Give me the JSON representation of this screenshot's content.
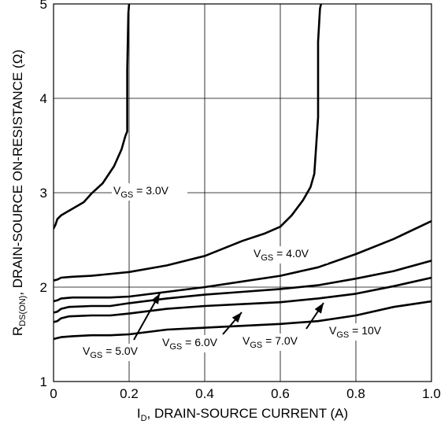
{
  "chart_data": {
    "type": "line",
    "title": "",
    "x_axis": {
      "label_main": "I",
      "label_sub": "D",
      "label_rest": ", DRAIN-SOURCE CURRENT (A)",
      "lim": [
        0,
        1.0
      ],
      "ticks": [
        "0",
        "0.2",
        "0.4",
        "0.6",
        "0.8",
        "1.0"
      ]
    },
    "y_axis": {
      "label_main": "R",
      "label_sub": "DS(ON)",
      "label_rest": ", DRAIN-SOURCE ON-RESISTANCE (Ω)",
      "lim": [
        1,
        5
      ],
      "ticks": [
        "1",
        "2",
        "3",
        "4",
        "5"
      ]
    },
    "grid": true,
    "series": [
      {
        "name_main": "V",
        "name_sub": "GS",
        "name_rest": " = 3.0V",
        "x": [
          0.0,
          0.005,
          0.01,
          0.02,
          0.05,
          0.08,
          0.1,
          0.13,
          0.16,
          0.18,
          0.19,
          0.195,
          0.195,
          0.198,
          0.2,
          0.2
        ],
        "y": [
          2.62,
          2.66,
          2.72,
          2.76,
          2.83,
          2.9,
          2.99,
          3.1,
          3.28,
          3.46,
          3.6,
          3.65,
          4.3,
          4.9,
          5.0,
          5.04
        ]
      },
      {
        "name_main": "V",
        "name_sub": "GS",
        "name_rest": " = 4.0V",
        "x": [
          0.0,
          0.01,
          0.02,
          0.05,
          0.1,
          0.2,
          0.3,
          0.4,
          0.5,
          0.56,
          0.6,
          0.63,
          0.66,
          0.68,
          0.69,
          0.7,
          0.7,
          0.705,
          0.71
        ],
        "y": [
          2.07,
          2.08,
          2.1,
          2.11,
          2.12,
          2.16,
          2.23,
          2.33,
          2.49,
          2.57,
          2.64,
          2.76,
          2.92,
          3.06,
          3.2,
          3.8,
          4.6,
          4.95,
          5.04
        ]
      },
      {
        "name_main": "V",
        "name_sub": "GS",
        "name_rest": " = 5.0V",
        "x": [
          0.0,
          0.01,
          0.02,
          0.05,
          0.1,
          0.15,
          0.2,
          0.3,
          0.4,
          0.5,
          0.6,
          0.7,
          0.8,
          0.9,
          1.0
        ],
        "y": [
          1.85,
          1.86,
          1.88,
          1.89,
          1.89,
          1.89,
          1.9,
          1.95,
          2.0,
          2.06,
          2.12,
          2.21,
          2.35,
          2.51,
          2.7
        ]
      },
      {
        "name_main": "V",
        "name_sub": "GS",
        "name_rest": " = 6.0V",
        "x": [
          0.0,
          0.01,
          0.02,
          0.04,
          0.1,
          0.15,
          0.2,
          0.3,
          0.4,
          0.5,
          0.6,
          0.7,
          0.8,
          0.9,
          1.0
        ],
        "y": [
          1.73,
          1.74,
          1.77,
          1.79,
          1.8,
          1.8,
          1.83,
          1.88,
          1.92,
          1.95,
          1.98,
          2.02,
          2.09,
          2.17,
          2.28
        ]
      },
      {
        "name_main": "V",
        "name_sub": "GS",
        "name_rest": " = 7.0V",
        "x": [
          0.0,
          0.01,
          0.02,
          0.04,
          0.1,
          0.15,
          0.2,
          0.3,
          0.4,
          0.5,
          0.6,
          0.7,
          0.8,
          0.9,
          1.0
        ],
        "y": [
          1.63,
          1.64,
          1.67,
          1.69,
          1.7,
          1.7,
          1.72,
          1.77,
          1.8,
          1.82,
          1.84,
          1.88,
          1.93,
          2.01,
          2.1
        ]
      },
      {
        "name_main": "V",
        "name_sub": "GS",
        "name_rest": " = 10V",
        "x": [
          0.0,
          0.01,
          0.02,
          0.05,
          0.1,
          0.15,
          0.2,
          0.3,
          0.4,
          0.5,
          0.6,
          0.7,
          0.8,
          0.9,
          1.0
        ],
        "y": [
          1.45,
          1.46,
          1.47,
          1.48,
          1.49,
          1.49,
          1.5,
          1.55,
          1.57,
          1.59,
          1.61,
          1.64,
          1.7,
          1.79,
          1.85
        ]
      }
    ]
  }
}
